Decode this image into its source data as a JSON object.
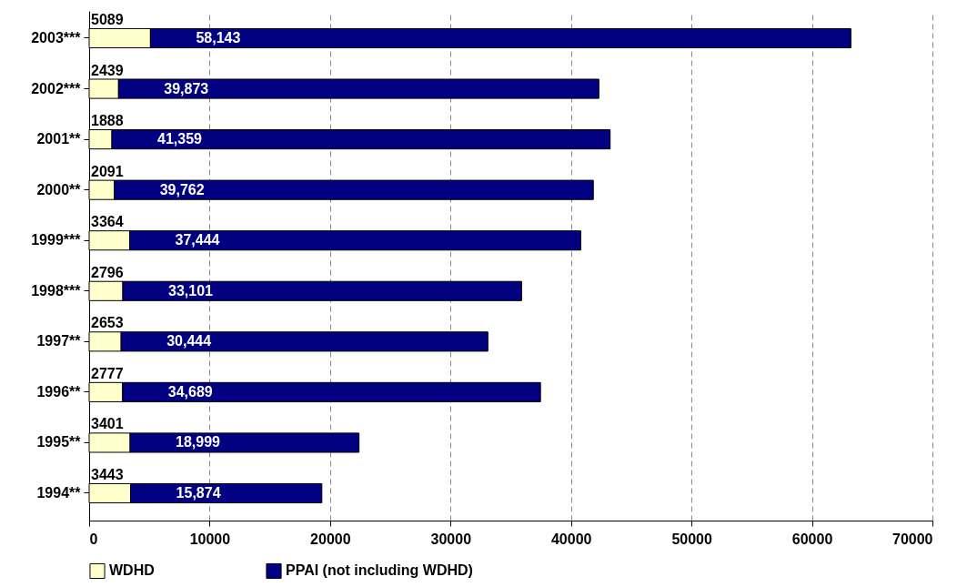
{
  "chart_data": {
    "type": "bar",
    "orientation": "horizontal",
    "stacked": true,
    "categories": [
      "2003***",
      "2002***",
      "2001**",
      "2000**",
      "1999***",
      "1998***",
      "1997**",
      "1996**",
      "1995**",
      "1994**"
    ],
    "series": [
      {
        "name": "WDHD",
        "color": "#ffffcc",
        "values": [
          5089,
          2439,
          1888,
          2091,
          3364,
          2796,
          2653,
          2777,
          3401,
          3443
        ],
        "value_labels": [
          "5089",
          "2439",
          "1888",
          "2091",
          "3364",
          "2796",
          "2653",
          "2777",
          "3401",
          "3443"
        ]
      },
      {
        "name": "PPAI (not including WDHD)",
        "color": "#000080",
        "values": [
          58143,
          39873,
          41359,
          39762,
          37444,
          33101,
          30444,
          34689,
          18999,
          15874
        ],
        "value_labels": [
          "58,143",
          "39,873",
          "41,359",
          "39,762",
          "37,444",
          "33,101",
          "30,444",
          "34,689",
          "18,999",
          "15,874"
        ]
      }
    ],
    "xlim": [
      0,
      70000
    ],
    "xticks": [
      0,
      10000,
      20000,
      30000,
      40000,
      50000,
      60000,
      70000
    ],
    "grid": "x",
    "legend": "bottom"
  }
}
